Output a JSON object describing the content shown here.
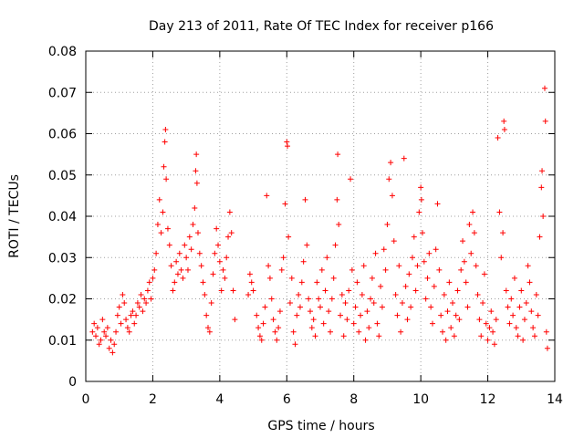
{
  "chart_data": {
    "type": "scatter",
    "title": "Day 213 of 2011, Rate Of TEC Index for receiver p166",
    "xlabel": "GPS time / hours",
    "ylabel": "ROTI / TECUs",
    "xlim": [
      0,
      14
    ],
    "ylim": [
      0,
      0.08
    ],
    "xticks": [
      "0",
      "2",
      "4",
      "6",
      "8",
      "10",
      "12",
      "14"
    ],
    "yticks": [
      "0",
      "0.01",
      "0.02",
      "0.03",
      "0.04",
      "0.05",
      "0.06",
      "0.07",
      "0.08"
    ],
    "grid": true,
    "marker": "+",
    "color": "#ff0000",
    "series": [
      {
        "points": [
          [
            0.2,
            0.012
          ],
          [
            0.25,
            0.014
          ],
          [
            0.3,
            0.011
          ],
          [
            0.35,
            0.013
          ],
          [
            0.4,
            0.009
          ],
          [
            0.45,
            0.01
          ],
          [
            0.5,
            0.015
          ],
          [
            0.55,
            0.012
          ],
          [
            0.6,
            0.011
          ],
          [
            0.65,
            0.013
          ],
          [
            0.7,
            0.008
          ],
          [
            0.75,
            0.01
          ],
          [
            0.8,
            0.007
          ],
          [
            0.85,
            0.009
          ],
          [
            0.9,
            0.012
          ],
          [
            0.95,
            0.016
          ],
          [
            1.0,
            0.018
          ],
          [
            1.05,
            0.014
          ],
          [
            1.1,
            0.021
          ],
          [
            1.15,
            0.019
          ],
          [
            1.2,
            0.015
          ],
          [
            1.25,
            0.013
          ],
          [
            1.3,
            0.012
          ],
          [
            1.35,
            0.016
          ],
          [
            1.4,
            0.017
          ],
          [
            1.45,
            0.014
          ],
          [
            1.5,
            0.016
          ],
          [
            1.55,
            0.019
          ],
          [
            1.6,
            0.018
          ],
          [
            1.65,
            0.021
          ],
          [
            1.7,
            0.017
          ],
          [
            1.75,
            0.02
          ],
          [
            1.8,
            0.019
          ],
          [
            1.85,
            0.022
          ],
          [
            1.9,
            0.024
          ],
          [
            1.95,
            0.02
          ],
          [
            2.0,
            0.025
          ],
          [
            2.05,
            0.027
          ],
          [
            2.1,
            0.031
          ],
          [
            2.15,
            0.038
          ],
          [
            2.2,
            0.044
          ],
          [
            2.25,
            0.036
          ],
          [
            2.3,
            0.041
          ],
          [
            2.33,
            0.052
          ],
          [
            2.36,
            0.058
          ],
          [
            2.38,
            0.061
          ],
          [
            2.4,
            0.049
          ],
          [
            2.45,
            0.037
          ],
          [
            2.5,
            0.033
          ],
          [
            2.55,
            0.028
          ],
          [
            2.6,
            0.022
          ],
          [
            2.65,
            0.024
          ],
          [
            2.7,
            0.029
          ],
          [
            2.75,
            0.026
          ],
          [
            2.8,
            0.031
          ],
          [
            2.85,
            0.027
          ],
          [
            2.9,
            0.025
          ],
          [
            2.95,
            0.033
          ],
          [
            3.0,
            0.03
          ],
          [
            3.05,
            0.027
          ],
          [
            3.1,
            0.035
          ],
          [
            3.15,
            0.032
          ],
          [
            3.2,
            0.038
          ],
          [
            3.25,
            0.042
          ],
          [
            3.28,
            0.051
          ],
          [
            3.3,
            0.055
          ],
          [
            3.32,
            0.048
          ],
          [
            3.35,
            0.036
          ],
          [
            3.4,
            0.031
          ],
          [
            3.45,
            0.028
          ],
          [
            3.5,
            0.024
          ],
          [
            3.55,
            0.021
          ],
          [
            3.6,
            0.016
          ],
          [
            3.65,
            0.013
          ],
          [
            3.7,
            0.012
          ],
          [
            3.75,
            0.019
          ],
          [
            3.8,
            0.026
          ],
          [
            3.85,
            0.031
          ],
          [
            3.9,
            0.037
          ],
          [
            3.95,
            0.033
          ],
          [
            4.0,
            0.029
          ],
          [
            4.05,
            0.022
          ],
          [
            4.1,
            0.027
          ],
          [
            4.15,
            0.025
          ],
          [
            4.2,
            0.03
          ],
          [
            4.25,
            0.035
          ],
          [
            4.3,
            0.041
          ],
          [
            4.35,
            0.036
          ],
          [
            4.4,
            0.022
          ],
          [
            4.45,
            0.015
          ],
          [
            4.85,
            0.021
          ],
          [
            4.9,
            0.026
          ],
          [
            4.95,
            0.024
          ],
          [
            5.0,
            0.022
          ],
          [
            5.1,
            0.016
          ],
          [
            5.15,
            0.013
          ],
          [
            5.2,
            0.011
          ],
          [
            5.25,
            0.01
          ],
          [
            5.3,
            0.014
          ],
          [
            5.35,
            0.018
          ],
          [
            5.4,
            0.045
          ],
          [
            5.45,
            0.028
          ],
          [
            5.5,
            0.025
          ],
          [
            5.55,
            0.02
          ],
          [
            5.6,
            0.015
          ],
          [
            5.65,
            0.012
          ],
          [
            5.7,
            0.01
          ],
          [
            5.75,
            0.013
          ],
          [
            5.8,
            0.017
          ],
          [
            5.85,
            0.027
          ],
          [
            5.9,
            0.03
          ],
          [
            5.95,
            0.043
          ],
          [
            6.0,
            0.058
          ],
          [
            6.02,
            0.057
          ],
          [
            6.05,
            0.035
          ],
          [
            6.1,
            0.019
          ],
          [
            6.15,
            0.025
          ],
          [
            6.2,
            0.012
          ],
          [
            6.25,
            0.009
          ],
          [
            6.3,
            0.016
          ],
          [
            6.35,
            0.021
          ],
          [
            6.4,
            0.018
          ],
          [
            6.45,
            0.024
          ],
          [
            6.5,
            0.029
          ],
          [
            6.55,
            0.044
          ],
          [
            6.6,
            0.033
          ],
          [
            6.65,
            0.02
          ],
          [
            6.7,
            0.017
          ],
          [
            6.75,
            0.013
          ],
          [
            6.8,
            0.015
          ],
          [
            6.85,
            0.011
          ],
          [
            6.9,
            0.024
          ],
          [
            6.95,
            0.02
          ],
          [
            7.0,
            0.018
          ],
          [
            7.05,
            0.027
          ],
          [
            7.1,
            0.014
          ],
          [
            7.15,
            0.022
          ],
          [
            7.2,
            0.03
          ],
          [
            7.25,
            0.017
          ],
          [
            7.3,
            0.012
          ],
          [
            7.35,
            0.02
          ],
          [
            7.4,
            0.025
          ],
          [
            7.45,
            0.033
          ],
          [
            7.5,
            0.044
          ],
          [
            7.52,
            0.055
          ],
          [
            7.55,
            0.038
          ],
          [
            7.6,
            0.016
          ],
          [
            7.65,
            0.021
          ],
          [
            7.7,
            0.011
          ],
          [
            7.75,
            0.019
          ],
          [
            7.8,
            0.015
          ],
          [
            7.85,
            0.022
          ],
          [
            7.9,
            0.049
          ],
          [
            7.95,
            0.027
          ],
          [
            8.0,
            0.014
          ],
          [
            8.05,
            0.018
          ],
          [
            8.1,
            0.024
          ],
          [
            8.15,
            0.012
          ],
          [
            8.2,
            0.016
          ],
          [
            8.25,
            0.021
          ],
          [
            8.3,
            0.028
          ],
          [
            8.35,
            0.01
          ],
          [
            8.4,
            0.017
          ],
          [
            8.45,
            0.013
          ],
          [
            8.5,
            0.02
          ],
          [
            8.55,
            0.025
          ],
          [
            8.6,
            0.019
          ],
          [
            8.65,
            0.031
          ],
          [
            8.7,
            0.014
          ],
          [
            8.75,
            0.011
          ],
          [
            8.8,
            0.023
          ],
          [
            8.85,
            0.018
          ],
          [
            8.9,
            0.032
          ],
          [
            8.95,
            0.027
          ],
          [
            9.0,
            0.038
          ],
          [
            9.05,
            0.049
          ],
          [
            9.1,
            0.053
          ],
          [
            9.15,
            0.045
          ],
          [
            9.2,
            0.034
          ],
          [
            9.25,
            0.021
          ],
          [
            9.3,
            0.016
          ],
          [
            9.35,
            0.028
          ],
          [
            9.4,
            0.012
          ],
          [
            9.45,
            0.019
          ],
          [
            9.5,
            0.054
          ],
          [
            9.55,
            0.023
          ],
          [
            9.6,
            0.015
          ],
          [
            9.65,
            0.026
          ],
          [
            9.7,
            0.018
          ],
          [
            9.75,
            0.03
          ],
          [
            9.8,
            0.035
          ],
          [
            9.85,
            0.022
          ],
          [
            9.9,
            0.028
          ],
          [
            9.95,
            0.041
          ],
          [
            10.0,
            0.047
          ],
          [
            10.02,
            0.044
          ],
          [
            10.05,
            0.036
          ],
          [
            10.1,
            0.029
          ],
          [
            10.15,
            0.02
          ],
          [
            10.2,
            0.025
          ],
          [
            10.25,
            0.031
          ],
          [
            10.3,
            0.018
          ],
          [
            10.35,
            0.014
          ],
          [
            10.4,
            0.023
          ],
          [
            10.45,
            0.032
          ],
          [
            10.5,
            0.043
          ],
          [
            10.55,
            0.027
          ],
          [
            10.6,
            0.016
          ],
          [
            10.65,
            0.012
          ],
          [
            10.7,
            0.021
          ],
          [
            10.75,
            0.01
          ],
          [
            10.8,
            0.017
          ],
          [
            10.85,
            0.024
          ],
          [
            10.9,
            0.013
          ],
          [
            10.95,
            0.019
          ],
          [
            11.0,
            0.011
          ],
          [
            11.05,
            0.016
          ],
          [
            11.1,
            0.022
          ],
          [
            11.15,
            0.015
          ],
          [
            11.2,
            0.027
          ],
          [
            11.25,
            0.034
          ],
          [
            11.3,
            0.029
          ],
          [
            11.35,
            0.024
          ],
          [
            11.4,
            0.018
          ],
          [
            11.45,
            0.038
          ],
          [
            11.5,
            0.031
          ],
          [
            11.55,
            0.041
          ],
          [
            11.6,
            0.036
          ],
          [
            11.65,
            0.028
          ],
          [
            11.7,
            0.021
          ],
          [
            11.75,
            0.015
          ],
          [
            11.8,
            0.011
          ],
          [
            11.85,
            0.019
          ],
          [
            11.9,
            0.026
          ],
          [
            11.95,
            0.014
          ],
          [
            12.0,
            0.01
          ],
          [
            12.05,
            0.013
          ],
          [
            12.1,
            0.017
          ],
          [
            12.15,
            0.012
          ],
          [
            12.2,
            0.009
          ],
          [
            12.25,
            0.015
          ],
          [
            12.3,
            0.059
          ],
          [
            12.35,
            0.041
          ],
          [
            12.4,
            0.03
          ],
          [
            12.45,
            0.036
          ],
          [
            12.48,
            0.063
          ],
          [
            12.5,
            0.061
          ],
          [
            12.55,
            0.022
          ],
          [
            12.6,
            0.018
          ],
          [
            12.65,
            0.014
          ],
          [
            12.7,
            0.02
          ],
          [
            12.75,
            0.016
          ],
          [
            12.8,
            0.025
          ],
          [
            12.85,
            0.013
          ],
          [
            12.9,
            0.011
          ],
          [
            12.95,
            0.018
          ],
          [
            13.0,
            0.022
          ],
          [
            13.05,
            0.01
          ],
          [
            13.1,
            0.015
          ],
          [
            13.15,
            0.019
          ],
          [
            13.2,
            0.028
          ],
          [
            13.25,
            0.024
          ],
          [
            13.3,
            0.017
          ],
          [
            13.35,
            0.013
          ],
          [
            13.4,
            0.011
          ],
          [
            13.45,
            0.021
          ],
          [
            13.5,
            0.016
          ],
          [
            13.55,
            0.035
          ],
          [
            13.6,
            0.047
          ],
          [
            13.62,
            0.051
          ],
          [
            13.65,
            0.04
          ],
          [
            13.7,
            0.071
          ],
          [
            13.72,
            0.063
          ],
          [
            13.75,
            0.012
          ],
          [
            13.78,
            0.008
          ]
        ]
      }
    ]
  }
}
